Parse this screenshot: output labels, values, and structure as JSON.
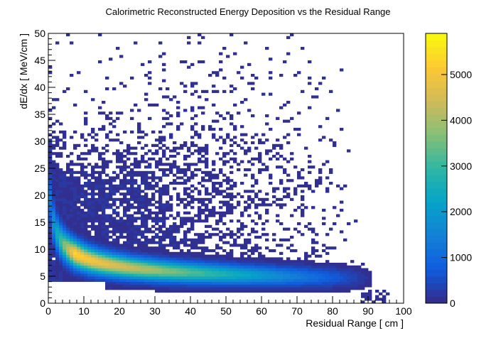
{
  "chart_data": {
    "type": "heatmap",
    "title": "Calorimetric Reconstructed Energy Deposition vs the Residual Range",
    "xlabel": "Residual Range [ cm ]",
    "ylabel": "dE/dx [ MeV/cm ]",
    "xlim": [
      0,
      100
    ],
    "ylim": [
      0,
      50
    ],
    "x_ticks": [
      0,
      10,
      20,
      30,
      40,
      50,
      60,
      70,
      80,
      90,
      100
    ],
    "y_ticks": [
      0,
      5,
      10,
      15,
      20,
      25,
      30,
      35,
      40,
      45,
      50
    ],
    "bin_width_x": 1,
    "bin_width_y": 0.5,
    "colorbar": {
      "min": 0,
      "max": 5900,
      "ticks": [
        0,
        1000,
        2000,
        3000,
        4000,
        5000
      ]
    },
    "density_model": {
      "band": "dE/dx ≈ 2.1 + 17·(range + 0.5)^-0.42 (Bragg-peak band)",
      "peak_counts_near_range_10cm": 5800
    },
    "grid": false
  }
}
